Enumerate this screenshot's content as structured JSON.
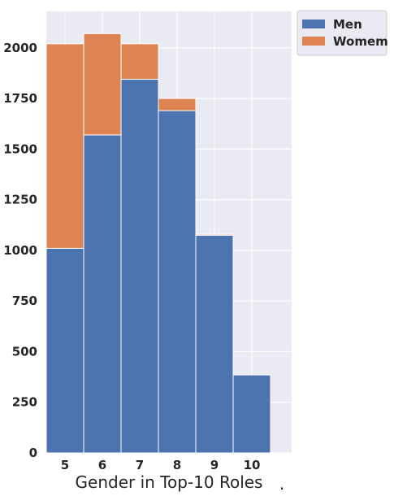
{
  "chart_data": {
    "type": "bar",
    "stacked": true,
    "categories": [
      "5",
      "6",
      "7",
      "8",
      "9",
      "10"
    ],
    "series": [
      {
        "name": "Men",
        "values": [
          1010,
          1570,
          1845,
          1690,
          1075,
          385
        ],
        "color": "#4c72b0"
      },
      {
        "name": "Womem",
        "values": [
          1010,
          500,
          175,
          60,
          5,
          0
        ],
        "color": "#dd8452"
      }
    ],
    "title": "",
    "xlabel": "Gender in Top-10 Roles",
    "trailing_mark": ".",
    "ylabel": "",
    "ylim": [
      0,
      2180
    ],
    "yticks": [
      "0",
      "250",
      "500",
      "750",
      "1000",
      "1250",
      "1500",
      "1750",
      "2000"
    ],
    "grid": true,
    "legend_position": "top-right (outside)",
    "background": "#eaeaf2"
  }
}
